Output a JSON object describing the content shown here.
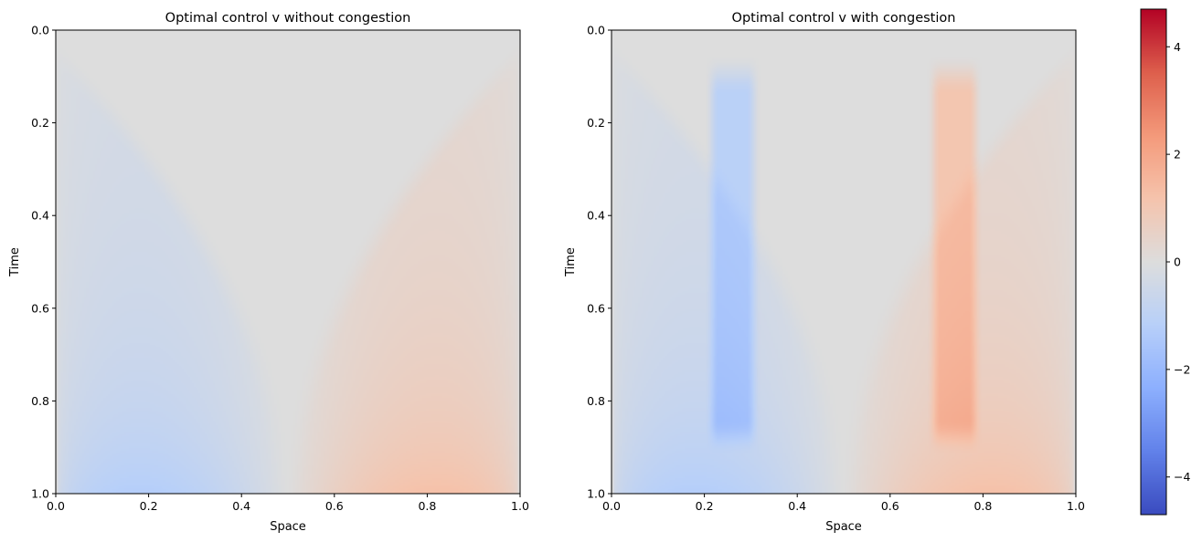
{
  "chart_data": [
    {
      "type": "heatmap",
      "title": "Optimal control v without congestion",
      "xlabel": "Space",
      "ylabel": "Time",
      "xlim": [
        0.0,
        1.0
      ],
      "ylim": [
        1.0,
        0.0
      ],
      "y_inverted": true,
      "xticks": [
        "0.0",
        "0.2",
        "0.4",
        "0.6",
        "0.8",
        "1.0"
      ],
      "yticks": [
        "0.0",
        "0.2",
        "0.4",
        "0.6",
        "0.8",
        "1.0"
      ],
      "colormap": "coolwarm",
      "congestion": false
    },
    {
      "type": "heatmap",
      "title": "Optimal control v with congestion",
      "xlabel": "Space",
      "ylabel": "Time",
      "xlim": [
        0.0,
        1.0
      ],
      "ylim": [
        1.0,
        0.0
      ],
      "y_inverted": true,
      "xticks": [
        "0.0",
        "0.2",
        "0.4",
        "0.6",
        "0.8",
        "1.0"
      ],
      "yticks": [
        "0.0",
        "0.2",
        "0.4",
        "0.6",
        "0.8",
        "1.0"
      ],
      "colormap": "coolwarm",
      "congestion": true,
      "congestion_bands": [
        [
          0.2,
          0.27
        ],
        [
          0.73,
          0.8
        ]
      ]
    }
  ],
  "colorbar": {
    "vmin": -4.7,
    "vmax": 4.7,
    "ticks": [
      -4,
      -2,
      0,
      2,
      4
    ],
    "tick_labels": [
      "−4",
      "−2",
      "0",
      "2",
      "4"
    ]
  }
}
